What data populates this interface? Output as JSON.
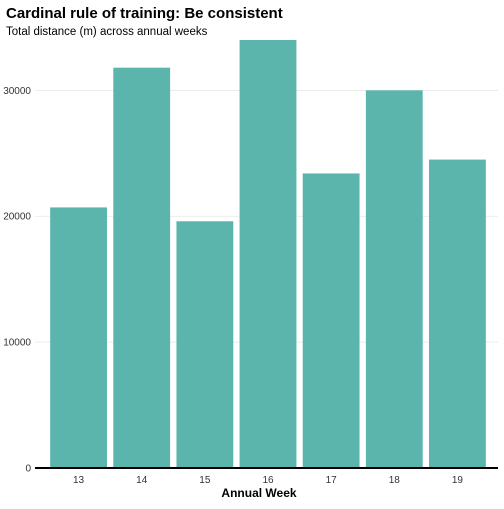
{
  "chart_data": {
    "type": "bar",
    "title": "Cardinal rule of training: Be consistent",
    "subtitle": "Total distance (m) across annual weeks",
    "xlabel": "Annual Week",
    "ylabel": "",
    "categories": [
      "13",
      "14",
      "15",
      "16",
      "17",
      "18",
      "19"
    ],
    "values": [
      20700,
      31800,
      19600,
      34000,
      23400,
      30000,
      24500
    ],
    "ylim": [
      0,
      34000
    ],
    "yticks": [
      0,
      10000,
      20000,
      30000
    ],
    "grid": true,
    "legend": "none",
    "bar_color": "#5BB5AD",
    "gridline_color": "#E6E6E6"
  }
}
